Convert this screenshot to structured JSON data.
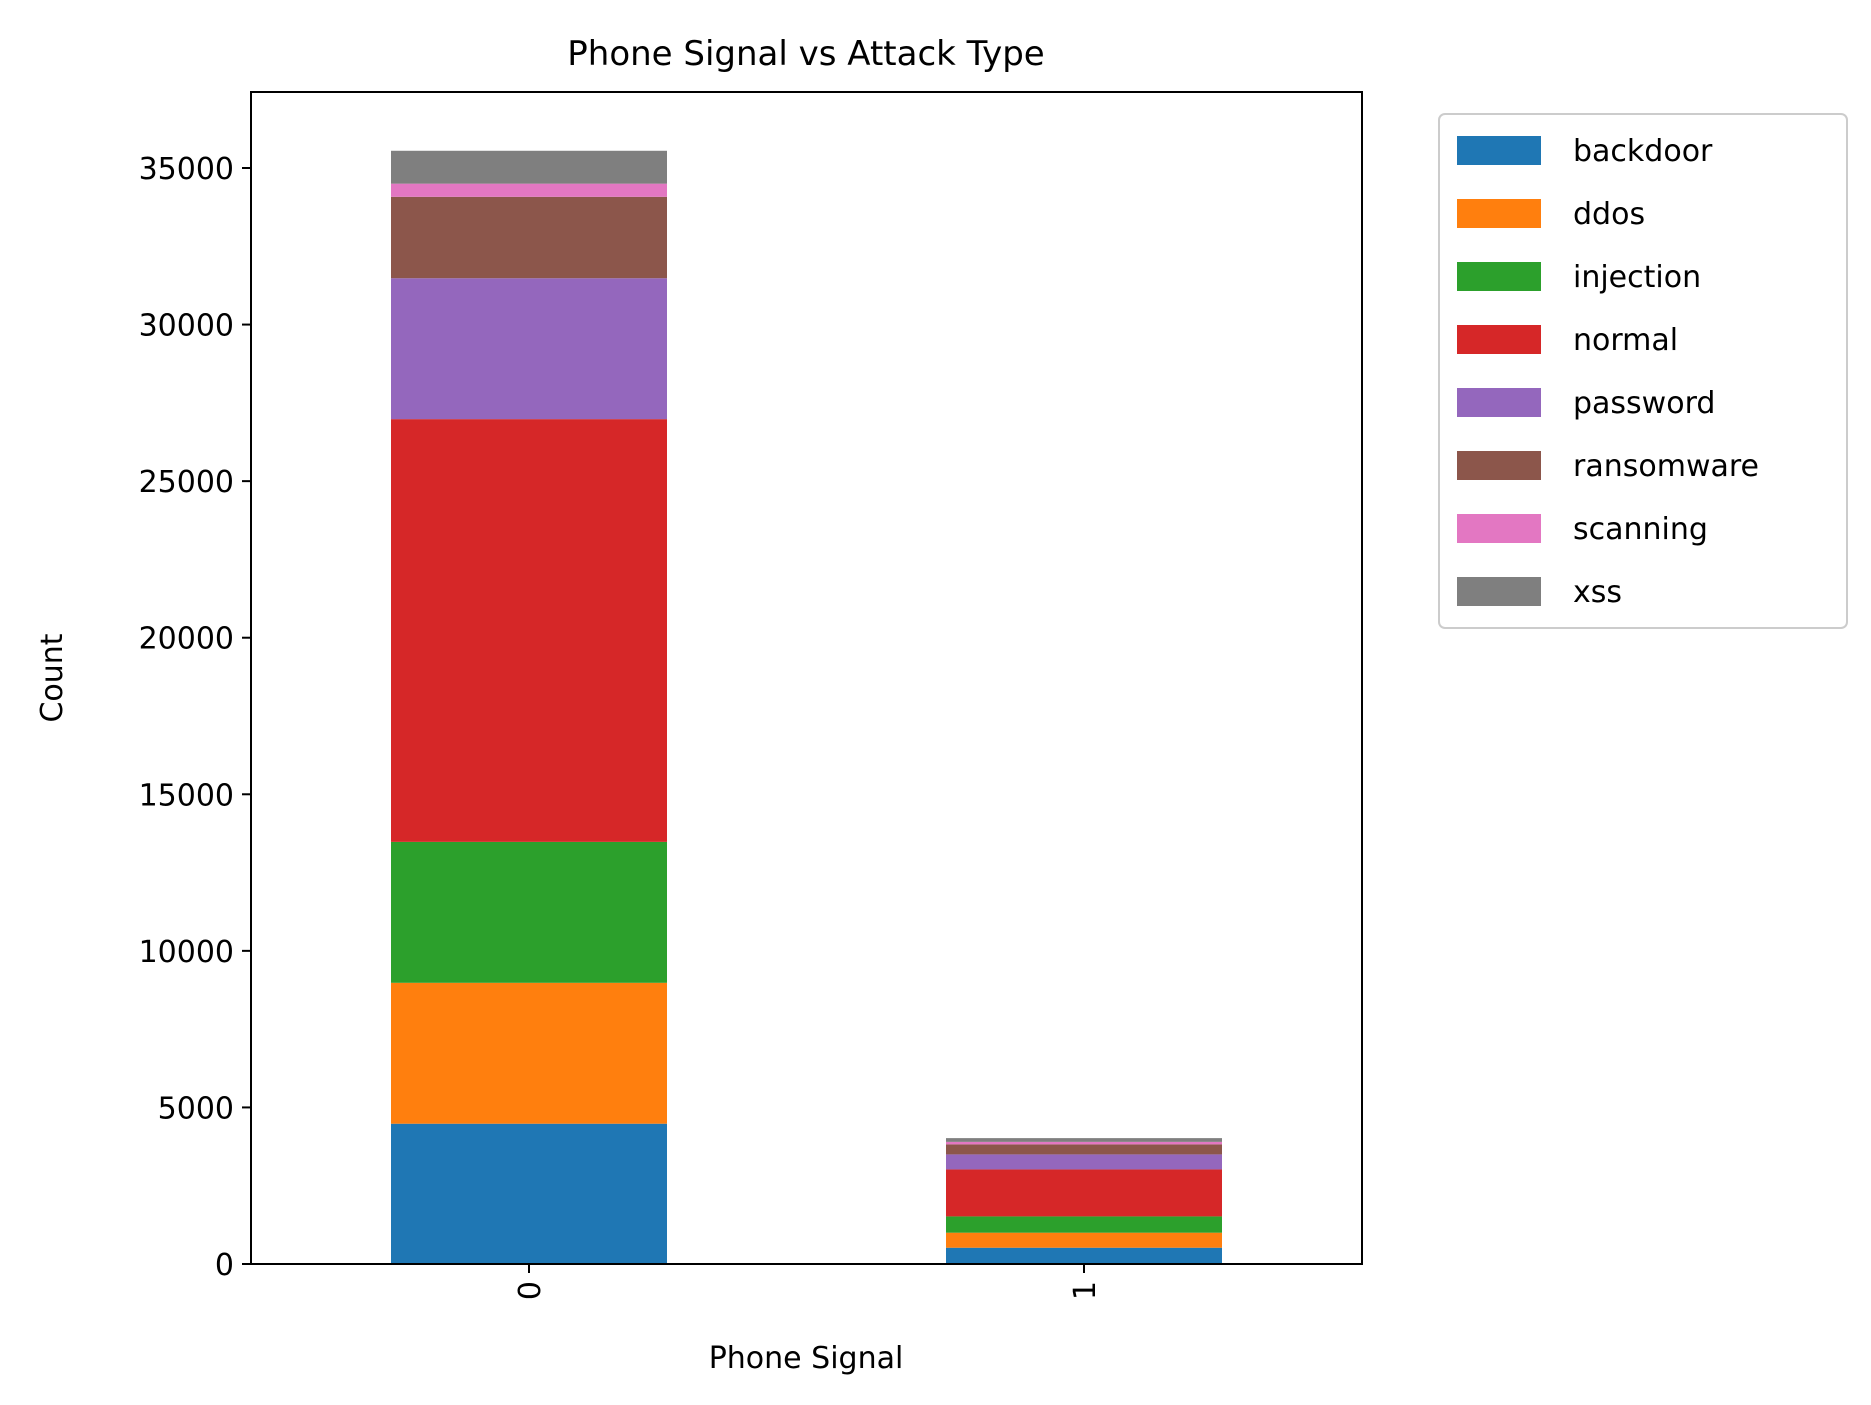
{
  "chart_data": {
    "type": "bar",
    "stacked": true,
    "title": "Phone Signal vs Attack Type",
    "xlabel": "Phone Signal",
    "ylabel": "Count",
    "categories": [
      "0",
      "1"
    ],
    "ylim": [
      0,
      37300
    ],
    "yticks": [
      0,
      5000,
      10000,
      15000,
      20000,
      25000,
      30000,
      35000
    ],
    "grid": false,
    "legend_position": "outside-right",
    "series": [
      {
        "name": "backdoor",
        "color": "#1f77b4",
        "values": [
          4480,
          520
        ]
      },
      {
        "name": "ddos",
        "color": "#ff7f0e",
        "values": [
          4500,
          480
        ]
      },
      {
        "name": "injection",
        "color": "#2ca02c",
        "values": [
          4500,
          520
        ]
      },
      {
        "name": "normal",
        "color": "#d62728",
        "values": [
          13500,
          1500
        ]
      },
      {
        "name": "password",
        "color": "#9467bd",
        "values": [
          4500,
          480
        ]
      },
      {
        "name": "ransomware",
        "color": "#8c564b",
        "values": [
          2600,
          320
        ]
      },
      {
        "name": "scanning",
        "color": "#e377c2",
        "values": [
          420,
          80
        ]
      },
      {
        "name": "xss",
        "color": "#7f7f7f",
        "values": [
          1050,
          120
        ]
      }
    ]
  }
}
